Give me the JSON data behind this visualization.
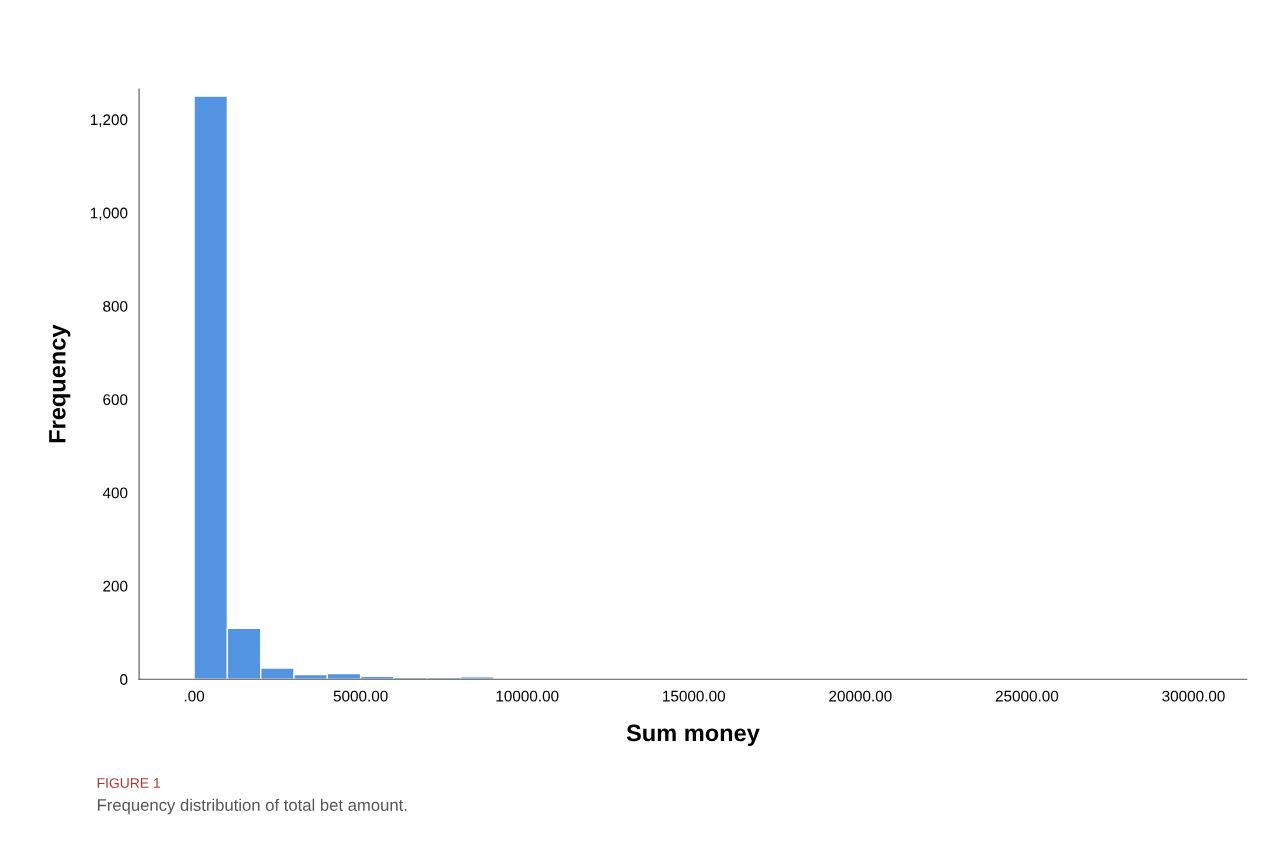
{
  "chart_data": {
    "type": "histogram",
    "xlabel": "Sum money",
    "ylabel": "Frequency",
    "bins": [
      0,
      1000,
      2000,
      3000,
      4000,
      5000,
      6000,
      7000,
      8000,
      9000,
      10000,
      11000,
      12000,
      13000,
      14000,
      15000,
      16000,
      17000,
      18000,
      19000,
      20000,
      21000,
      22000,
      23000,
      24000,
      25000,
      26000,
      27000,
      28000,
      29000,
      30000
    ],
    "values": [
      1250,
      109,
      24,
      10,
      12,
      6,
      4,
      4,
      5,
      null,
      2,
      1,
      1,
      1,
      0,
      1,
      0,
      0,
      0,
      0,
      0,
      1,
      0,
      0,
      0,
      0,
      0,
      0,
      0,
      1
    ],
    "color": "#5294e2",
    "xlim": [
      -1650,
      31600
    ],
    "xticks": [
      {
        "value": 0,
        "label": ".00"
      },
      {
        "value": 5000,
        "label": "5000.00"
      },
      {
        "value": 10000,
        "label": "10000.00"
      },
      {
        "value": 15000,
        "label": "15000.00"
      },
      {
        "value": 20000,
        "label": "20000.00"
      },
      {
        "value": 25000,
        "label": "25000.00"
      },
      {
        "value": 30000,
        "label": "30000.00"
      }
    ],
    "ylim": [
      0,
      1265
    ],
    "yticks": [
      0,
      200,
      400,
      600,
      800,
      {
        "value": 1000,
        "label": "1,000"
      },
      {
        "value": 1200,
        "label": "1,200"
      }
    ],
    "grid": false,
    "annotations": [
      "FIGURE 1",
      "Frequency distribution of total bet amount."
    ]
  }
}
